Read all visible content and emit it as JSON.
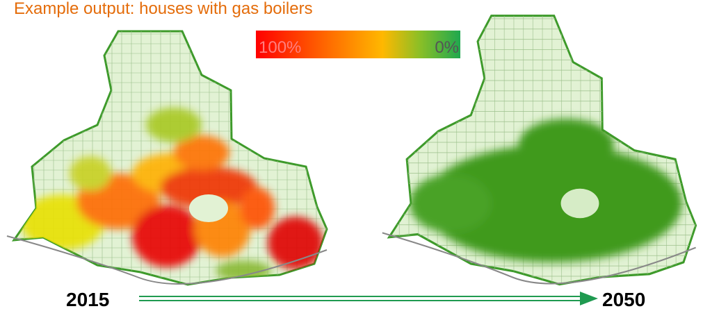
{
  "title": "Example output: houses with gas boilers",
  "legend": {
    "high_label": "100%",
    "low_label": "0%"
  },
  "maps": [
    {
      "year": "2015"
    },
    {
      "year": "2050"
    }
  ]
}
